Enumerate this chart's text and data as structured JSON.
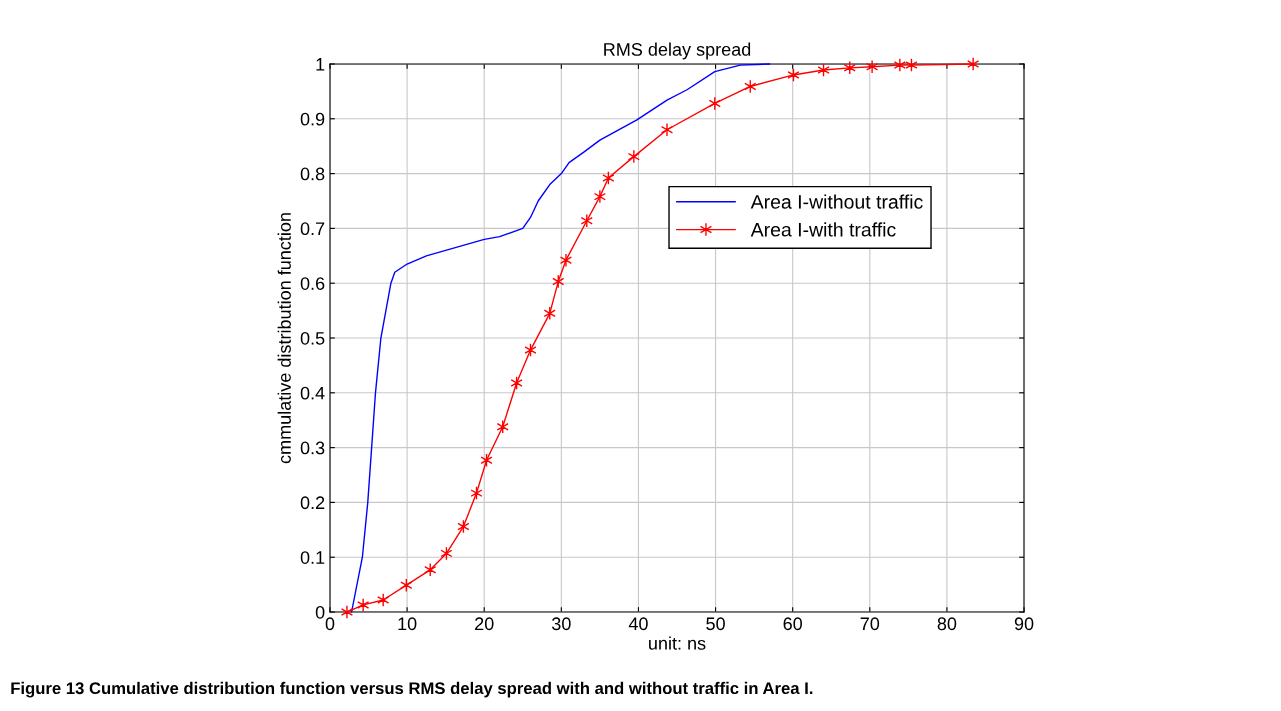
{
  "chart_data": {
    "type": "line",
    "title": "RMS delay spread",
    "xlabel": "unit: ns",
    "ylabel": "cmmulative distribution function",
    "annotations": [
      "Figure 13 Cumulative distribution function versus RMS delay spread with and without traffic in Area I."
    ],
    "series": [
      {
        "name": "Area I-without traffic",
        "color": "#0000ff",
        "marker": "none",
        "x": [
          2.8,
          4.2,
          4.9,
          5.4,
          5.9,
          6.6,
          7.9,
          8.4,
          10,
          12.5,
          15,
          17.5,
          20,
          22,
          23,
          25,
          26,
          27,
          28.5,
          30,
          31,
          33,
          35,
          39.8,
          43.7,
          46.3,
          49.9,
          53.2,
          57
        ],
        "values": [
          0,
          0.1,
          0.2,
          0.3,
          0.4,
          0.5,
          0.6,
          0.62,
          0.635,
          0.65,
          0.66,
          0.67,
          0.68,
          0.685,
          0.69,
          0.7,
          0.72,
          0.75,
          0.78,
          0.8,
          0.82,
          0.84,
          0.861,
          0.898,
          0.934,
          0.953,
          0.986,
          0.998,
          1.0
        ]
      },
      {
        "name": "Area I-with traffic",
        "color": "#ff0000",
        "marker": "cross",
        "x": [
          2.2,
          4.3,
          6.9,
          9.9,
          13,
          15.1,
          17.3,
          19,
          20.3,
          22.4,
          24.2,
          26,
          28.5,
          29.6,
          30.6,
          33.3,
          35,
          36.1,
          39.4,
          43.7,
          49.9,
          54.5,
          60.1,
          64,
          67.4,
          70.3,
          73.9,
          75.4,
          83.4
        ],
        "values": [
          0,
          0.013,
          0.022,
          0.049,
          0.077,
          0.107,
          0.156,
          0.217,
          0.277,
          0.338,
          0.418,
          0.478,
          0.545,
          0.603,
          0.642,
          0.714,
          0.758,
          0.792,
          0.831,
          0.88,
          0.928,
          0.959,
          0.98,
          0.989,
          0.993,
          0.995,
          0.998,
          0.998,
          1.0
        ]
      }
    ],
    "xlim": [
      0,
      90
    ],
    "xticks": [
      0,
      10,
      20,
      30,
      40,
      50,
      60,
      70,
      80,
      90
    ],
    "ylim": [
      0,
      1
    ],
    "yticks": [
      0,
      0.1,
      0.2,
      0.3,
      0.4,
      0.5,
      0.6,
      0.7,
      0.8,
      0.9,
      1
    ],
    "grid": true,
    "legend": "right",
    "line_style": "solid"
  }
}
